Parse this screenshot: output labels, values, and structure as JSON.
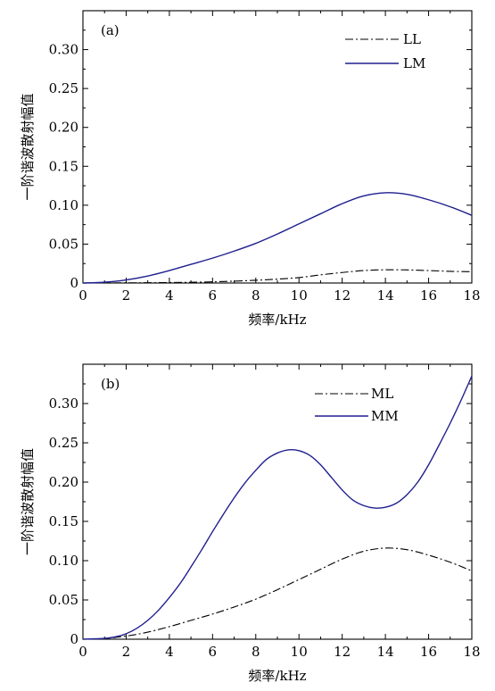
{
  "colors": {
    "series_solid": "#1f1f8f",
    "series_dashdot": "#000000"
  },
  "chart_data": [
    {
      "type": "line",
      "panel_label": "(a)",
      "xlabel": "频率/kHz",
      "ylabel": "一阶谐波散射幅值",
      "xlim": [
        0,
        18
      ],
      "ylim": [
        0,
        0.35
      ],
      "xticks": [
        "0",
        "2",
        "4",
        "6",
        "8",
        "10",
        "12",
        "14",
        "16",
        "18"
      ],
      "yticks": [
        "0",
        "0.05",
        "0.10",
        "0.15",
        "0.20",
        "0.25",
        "0.30"
      ],
      "legend_position": "top-right",
      "series": [
        {
          "name": "LL",
          "style": "dash-dot",
          "x": [
            0,
            2,
            4,
            6,
            8,
            9,
            10,
            11,
            12,
            13,
            14,
            15,
            16,
            17,
            18
          ],
          "y": [
            0,
            0.0002,
            0.0006,
            0.0015,
            0.0035,
            0.005,
            0.007,
            0.0105,
            0.0135,
            0.016,
            0.017,
            0.0168,
            0.016,
            0.015,
            0.0145
          ]
        },
        {
          "name": "LM",
          "style": "solid",
          "x": [
            0,
            1,
            2,
            3,
            4,
            5,
            6,
            7,
            8,
            9,
            10,
            11,
            12,
            13,
            14,
            15,
            16,
            17,
            18
          ],
          "y": [
            0,
            0.001,
            0.004,
            0.009,
            0.016,
            0.024,
            0.032,
            0.041,
            0.051,
            0.063,
            0.076,
            0.089,
            0.102,
            0.112,
            0.116,
            0.114,
            0.107,
            0.098,
            0.087
          ]
        }
      ]
    },
    {
      "type": "line",
      "panel_label": "(b)",
      "xlabel": "频率/kHz",
      "ylabel": "一阶谐波散射幅值",
      "xlim": [
        0,
        18
      ],
      "ylim": [
        0,
        0.35
      ],
      "xticks": [
        "0",
        "2",
        "4",
        "6",
        "8",
        "10",
        "12",
        "14",
        "16",
        "18"
      ],
      "yticks": [
        "0",
        "0.05",
        "0.10",
        "0.15",
        "0.20",
        "0.25",
        "0.30"
      ],
      "legend_position": "top-right",
      "series": [
        {
          "name": "ML",
          "style": "dash-dot",
          "x": [
            0,
            1,
            2,
            3,
            4,
            5,
            6,
            7,
            8,
            9,
            10,
            11,
            12,
            13,
            14,
            15,
            16,
            17,
            18
          ],
          "y": [
            0,
            0.001,
            0.004,
            0.009,
            0.016,
            0.024,
            0.032,
            0.041,
            0.051,
            0.063,
            0.076,
            0.089,
            0.102,
            0.112,
            0.116,
            0.114,
            0.107,
            0.098,
            0.087
          ]
        },
        {
          "name": "MM",
          "style": "solid",
          "x": [
            0,
            1,
            1.5,
            2,
            2.5,
            3,
            3.5,
            4,
            4.5,
            5,
            5.5,
            6,
            6.5,
            7,
            7.5,
            8,
            8.5,
            9,
            9.5,
            10,
            10.5,
            11,
            11.5,
            12,
            12.5,
            13,
            13.5,
            14,
            14.5,
            15,
            15.5,
            16,
            16.5,
            17,
            17.5,
            18
          ],
          "y": [
            0,
            0.001,
            0.003,
            0.007,
            0.014,
            0.024,
            0.037,
            0.053,
            0.071,
            0.092,
            0.114,
            0.137,
            0.159,
            0.18,
            0.199,
            0.215,
            0.229,
            0.237,
            0.241,
            0.24,
            0.234,
            0.222,
            0.206,
            0.19,
            0.177,
            0.17,
            0.167,
            0.168,
            0.173,
            0.184,
            0.2,
            0.222,
            0.248,
            0.275,
            0.304,
            0.335
          ]
        }
      ]
    }
  ]
}
